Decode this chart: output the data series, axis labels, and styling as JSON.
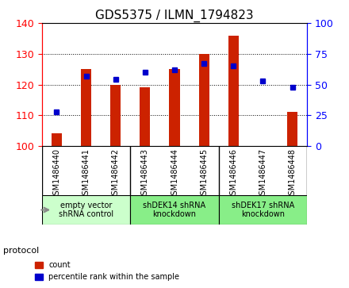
{
  "title": "GDS5375 / ILMN_1794823",
  "samples": [
    "GSM1486440",
    "GSM1486441",
    "GSM1486442",
    "GSM1486443",
    "GSM1486444",
    "GSM1486445",
    "GSM1486446",
    "GSM1486447",
    "GSM1486448"
  ],
  "counts": [
    104,
    125,
    120,
    119,
    125,
    130,
    136,
    100,
    111
  ],
  "percentiles": [
    28,
    57,
    54,
    60,
    62,
    67,
    65,
    53,
    48
  ],
  "ylim_left": [
    100,
    140
  ],
  "ylim_right": [
    0,
    100
  ],
  "yticks_left": [
    100,
    110,
    120,
    130,
    140
  ],
  "yticks_right": [
    0,
    25,
    50,
    75,
    100
  ],
  "bar_color": "#CC2200",
  "dot_color": "#0000CC",
  "groups": [
    {
      "label": "empty vector\nshRNA control",
      "start": 0,
      "end": 3,
      "color": "#CCFFCC"
    },
    {
      "label": "shDEK14 shRNA\nknockdown",
      "start": 3,
      "end": 6,
      "color": "#88EE88"
    },
    {
      "label": "shDEK17 shRNA\nknockdown",
      "start": 6,
      "end": 9,
      "color": "#88EE88"
    }
  ],
  "protocol_label": "protocol",
  "legend_count": "count",
  "legend_percentile": "percentile rank within the sample",
  "grid_color": "#000000",
  "background_color": "#FFFFFF",
  "plot_bg": "#FFFFFF",
  "tick_label_area_bg": "#DDDDDD"
}
